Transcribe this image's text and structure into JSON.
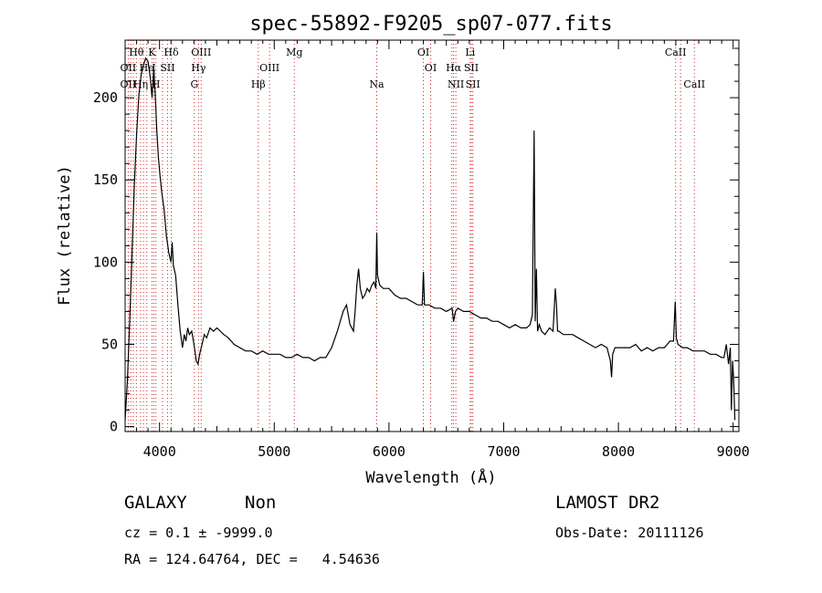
{
  "chart_data": {
    "type": "line",
    "title": "spec-55892-F9205_sp07-077.fits",
    "xlabel": "Wavelength (Å)",
    "ylabel": "Flux (relative)",
    "xlim": [
      3700,
      9050
    ],
    "ylim": [
      -3,
      235
    ],
    "xticks": [
      4000,
      5000,
      6000,
      7000,
      8000,
      9000
    ],
    "yticks": [
      0,
      50,
      100,
      150,
      200
    ],
    "grid": false,
    "series": [
      {
        "x": [
          3700,
          3720,
          3740,
          3760,
          3780,
          3800,
          3820,
          3840,
          3860,
          3880,
          3900,
          3920,
          3935,
          3950,
          3965,
          3975,
          3990,
          4005,
          4020,
          4040,
          4060,
          4080,
          4100,
          4110,
          4120,
          4140,
          4160,
          4180,
          4200,
          4215,
          4230,
          4245,
          4260,
          4280,
          4300,
          4320,
          4335,
          4350,
          4370,
          4390,
          4410,
          4440,
          4470,
          4500,
          4530,
          4560,
          4600,
          4650,
          4700,
          4750,
          4800,
          4850,
          4900,
          4950,
          5000,
          5050,
          5100,
          5150,
          5200,
          5250,
          5300,
          5350,
          5400,
          5450,
          5500,
          5550,
          5600,
          5630,
          5660,
          5690,
          5705,
          5720,
          5735,
          5750,
          5770,
          5790,
          5810,
          5830,
          5850,
          5870,
          5885,
          5893,
          5900,
          5920,
          5950,
          6000,
          6050,
          6100,
          6150,
          6200,
          6250,
          6290,
          6300,
          6310,
          6350,
          6400,
          6450,
          6500,
          6550,
          6563,
          6580,
          6600,
          6650,
          6700,
          6750,
          6800,
          6850,
          6900,
          6950,
          7000,
          7050,
          7100,
          7150,
          7200,
          7230,
          7250,
          7265,
          7275,
          7285,
          7295,
          7310,
          7330,
          7360,
          7400,
          7430,
          7450,
          7460,
          7470,
          7480,
          7520,
          7560,
          7600,
          7650,
          7700,
          7750,
          7800,
          7850,
          7900,
          7930,
          7940,
          7950,
          7970,
          8000,
          8050,
          8100,
          8150,
          8200,
          8250,
          8300,
          8350,
          8400,
          8450,
          8480,
          8495,
          8505,
          8520,
          8560,
          8600,
          8650,
          8700,
          8750,
          8800,
          8850,
          8900,
          8920,
          8940,
          8960,
          8975,
          8985,
          8995,
          9005,
          9015
        ],
        "y": [
          4,
          28,
          64,
          104,
          146,
          178,
          202,
          214,
          220,
          224,
          222,
          212,
          200,
          218,
          198,
          182,
          164,
          152,
          142,
          132,
          116,
          106,
          100,
          112,
          98,
          92,
          74,
          58,
          48,
          56,
          52,
          60,
          56,
          58,
          50,
          40,
          38,
          44,
          50,
          56,
          54,
          60,
          58,
          60,
          58,
          56,
          54,
          50,
          48,
          46,
          46,
          44,
          46,
          44,
          44,
          44,
          42,
          42,
          44,
          42,
          42,
          40,
          42,
          42,
          48,
          58,
          70,
          74,
          62,
          58,
          70,
          86,
          96,
          84,
          78,
          80,
          84,
          82,
          86,
          88,
          84,
          118,
          92,
          86,
          84,
          84,
          80,
          78,
          78,
          76,
          74,
          74,
          94,
          74,
          74,
          72,
          72,
          70,
          72,
          64,
          70,
          72,
          70,
          70,
          68,
          66,
          66,
          64,
          64,
          62,
          60,
          62,
          60,
          60,
          62,
          68,
          180,
          64,
          96,
          58,
          62,
          58,
          56,
          60,
          58,
          84,
          74,
          58,
          58,
          56,
          56,
          56,
          54,
          52,
          50,
          48,
          50,
          48,
          40,
          30,
          44,
          48,
          48,
          48,
          48,
          50,
          46,
          48,
          46,
          48,
          48,
          52,
          52,
          76,
          54,
          50,
          48,
          48,
          46,
          46,
          46,
          44,
          44,
          42,
          42,
          50,
          38,
          48,
          10,
          40,
          28,
          4
        ]
      }
    ],
    "lines": [
      {
        "label": "Hθ",
        "wl": 3798,
        "row": 1
      },
      {
        "label": "K",
        "wl": 3934,
        "row": 1
      },
      {
        "label": "Hδ",
        "wl": 4102,
        "row": 1
      },
      {
        "label": "OIII",
        "wl": 4363,
        "row": 1
      },
      {
        "label": "Mg",
        "wl": 5175,
        "row": 1
      },
      {
        "label": "OI",
        "wl": 6300,
        "row": 1
      },
      {
        "label": "Li",
        "wl": 6708,
        "row": 1
      },
      {
        "label": "CaII",
        "wl": 8498,
        "row": 1
      },
      {
        "label": "OII",
        "wl": 3727,
        "row": 2
      },
      {
        "label": "He",
        "wl": 3889,
        "row": 2
      },
      {
        "label": "I",
        "wl": 3950,
        "row": 2
      },
      {
        "label": "SII",
        "wl": 4070,
        "row": 2
      },
      {
        "label": "Hγ",
        "wl": 4340,
        "row": 2
      },
      {
        "label": "OIII",
        "wl": 4959,
        "row": 2
      },
      {
        "label": "OI",
        "wl": 6363,
        "row": 2
      },
      {
        "label": "Hα",
        "wl": 6563,
        "row": 2
      },
      {
        "label": "SII",
        "wl": 6717,
        "row": 2
      },
      {
        "label": "OII",
        "wl": 3727,
        "row": 3
      },
      {
        "label": "Hη",
        "wl": 3835,
        "row": 3
      },
      {
        "label": "H",
        "wl": 3968,
        "row": 3
      },
      {
        "label": "G",
        "wl": 4304,
        "row": 3
      },
      {
        "label": "Hβ",
        "wl": 4861,
        "row": 3
      },
      {
        "label": "Na",
        "wl": 5893,
        "row": 3
      },
      {
        "label": "NII",
        "wl": 6583,
        "row": 3
      },
      {
        "label": "SII",
        "wl": 6731,
        "row": 3
      },
      {
        "label": "CaII",
        "wl": 8662,
        "row": 3
      }
    ],
    "marker_only": [
      3771,
      3750,
      3860,
      4026,
      6548,
      8542
    ]
  },
  "info": {
    "class": "GALAXY",
    "subclass": "Non",
    "survey": "LAMOST DR2",
    "cz": "cz = 0.1 ± -9999.0",
    "obsdate": "Obs-Date: 20111126",
    "radec": "RA = 124.64764, DEC =   4.54636"
  },
  "colors": {
    "line": "#000000",
    "marker": "#cc2222"
  }
}
